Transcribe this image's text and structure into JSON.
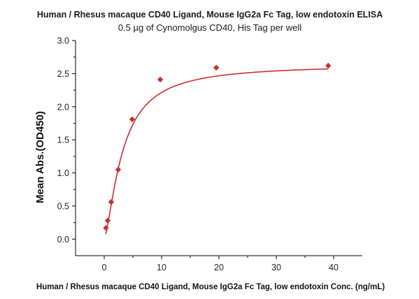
{
  "chart_data": {
    "type": "scatter",
    "title": "Human / Rhesus macaque CD40 Ligand, Mouse IgG2a Fc Tag, low endotoxin ELISA",
    "subtitle": "0.5 µg of Cynomolgus CD40, His Tag per well",
    "xlabel": "Human / Rhesus macaque CD40 Ligand, Mouse IgG2a Fc Tag, low endotoxin Conc. (ng/mL)",
    "ylabel": "Mean Abs.(OD450)",
    "xlim": [
      -5,
      45
    ],
    "ylim": [
      -0.25,
      3.0
    ],
    "xticks": [
      0,
      10,
      20,
      30,
      40
    ],
    "yticks": [
      0.0,
      0.5,
      1.0,
      1.5,
      2.0,
      2.5,
      3.0
    ],
    "xtick_labels": [
      "0",
      "10",
      "20",
      "30",
      "40"
    ],
    "ytick_labels": [
      "0.0",
      "0.5",
      "1.0",
      "1.5",
      "2.0",
      "2.5",
      "3.0"
    ],
    "grid": false,
    "series": [
      {
        "x": [
          0.3,
          0.61,
          1.22,
          2.44,
          4.88,
          9.77,
          19.53,
          39.06
        ],
        "y": [
          0.17,
          0.28,
          0.56,
          1.05,
          1.81,
          2.41,
          2.59,
          2.62
        ],
        "marker": "diamond",
        "color": "#c8302c",
        "fit": "4PL"
      }
    ]
  }
}
